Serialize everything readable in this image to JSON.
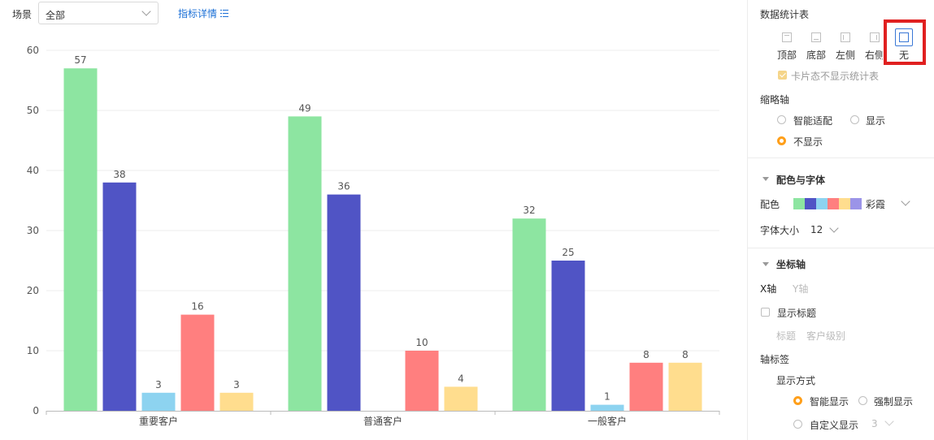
{
  "toolbar": {
    "scene_label": "场景",
    "scene_value": "全部",
    "metric_link": "指标详情"
  },
  "chart_data": {
    "type": "bar",
    "categories": [
      "重要客户",
      "普通客户",
      "一般客户"
    ],
    "series": [
      {
        "color": "#8de5a1",
        "values": [
          57,
          49,
          32
        ]
      },
      {
        "color": "#5054c5",
        "values": [
          38,
          36,
          25
        ]
      },
      {
        "color": "#8dd3f0",
        "values": [
          3,
          null,
          1
        ]
      },
      {
        "color": "#ff7f7f",
        "values": [
          16,
          10,
          8
        ]
      },
      {
        "color": "#ffdd8e",
        "values": [
          3,
          4,
          8
        ]
      }
    ],
    "ylim": [
      0,
      60
    ],
    "yticks": [
      0,
      10,
      20,
      30,
      40,
      50,
      60
    ],
    "grid": true,
    "data_labels": true,
    "legend": "none"
  },
  "panel": {
    "stats_title": "数据统计表",
    "positions": [
      "顶部",
      "底部",
      "左侧",
      "右侧",
      "无"
    ],
    "card_hide_label": "卡片态不显示统计表",
    "card_hide_checked": true,
    "thumb_axis_title": "缩略轴",
    "thumb_options": [
      "智能适配",
      "显示",
      "不显示"
    ],
    "thumb_selected": "不显示",
    "color_font_title": "配色与字体",
    "palette_label": "配色",
    "palette_colors": [
      "#8de5a1",
      "#5054c5",
      "#8dd3f0",
      "#ff7f7f",
      "#ffdd8e",
      "#9b94e8"
    ],
    "palette_name": "彩霞",
    "font_size_label": "字体大小",
    "font_size_value": "12",
    "axis_title": "坐标轴",
    "axis_tabs": [
      "X轴",
      "Y轴"
    ],
    "show_title_label": "显示标题",
    "title_field_label": "标题",
    "title_field_value": "客户级别",
    "axis_label_title": "轴标签",
    "display_mode_label": "显示方式",
    "display_options": [
      "智能显示",
      "强制显示",
      "自定义显示"
    ],
    "display_selected": "智能显示",
    "custom_value": "3"
  }
}
